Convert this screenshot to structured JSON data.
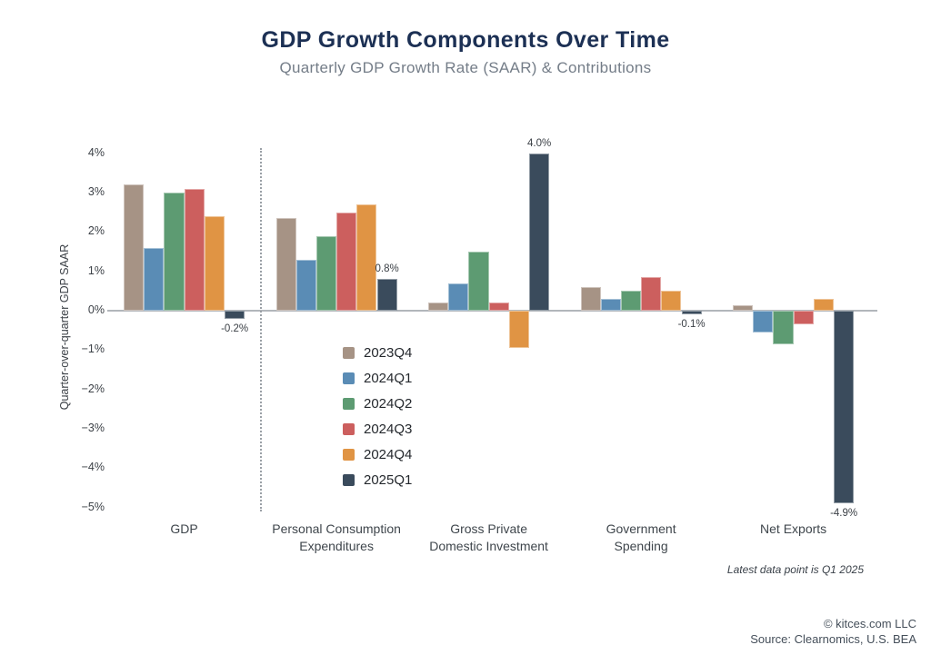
{
  "chart_data": {
    "type": "bar",
    "title": "GDP Growth Components Over Time",
    "subtitle": "Quarterly GDP Growth Rate (SAAR) & Contributions",
    "ylabel": "Quarter-over-quarter GDP SAAR",
    "ylim": [
      -5,
      4
    ],
    "yticks": [
      "4%",
      "3%",
      "2%",
      "1%",
      "0%",
      "−1%",
      "−2%",
      "−3%",
      "−4%",
      "−5%"
    ],
    "grid": "zero-line-only",
    "legend_position": "inside-plot-center-left",
    "separator_after_category": "GDP",
    "categories": [
      [
        "GDP"
      ],
      [
        "Personal Consumption",
        "Expenditures"
      ],
      [
        "Gross Private",
        "Domestic Investment"
      ],
      [
        "Government",
        "Spending"
      ],
      [
        "Net Exports"
      ]
    ],
    "series": [
      {
        "name": "2023Q4",
        "color": "#a69385",
        "values": [
          3.2,
          2.35,
          0.2,
          0.6,
          0.15
        ]
      },
      {
        "name": "2024Q1",
        "color": "#5a8cb5",
        "values": [
          1.6,
          1.3,
          0.7,
          0.3,
          -0.55
        ]
      },
      {
        "name": "2024Q2",
        "color": "#5d9b72",
        "values": [
          3.0,
          1.9,
          1.5,
          0.5,
          -0.85
        ]
      },
      {
        "name": "2024Q3",
        "color": "#cc5f5e",
        "values": [
          3.1,
          2.5,
          0.2,
          0.85,
          -0.35
        ]
      },
      {
        "name": "2024Q4",
        "color": "#e09444",
        "values": [
          2.4,
          2.7,
          -0.95,
          0.5,
          0.3
        ]
      },
      {
        "name": "2025Q1",
        "color": "#3a4b5c",
        "values": [
          -0.2,
          0.8,
          4.0,
          -0.1,
          -4.9
        ]
      }
    ],
    "bar_labels": {
      "series": "2025Q1",
      "labels": [
        "-0.2%",
        "0.8%",
        "4.0%",
        "-0.1%",
        "-4.9%"
      ]
    }
  },
  "note": "Latest data point is Q1 2025",
  "footer": {
    "copyright": "© kitces.com LLC",
    "source": "Source: Clearnomics, U.S. BEA"
  }
}
